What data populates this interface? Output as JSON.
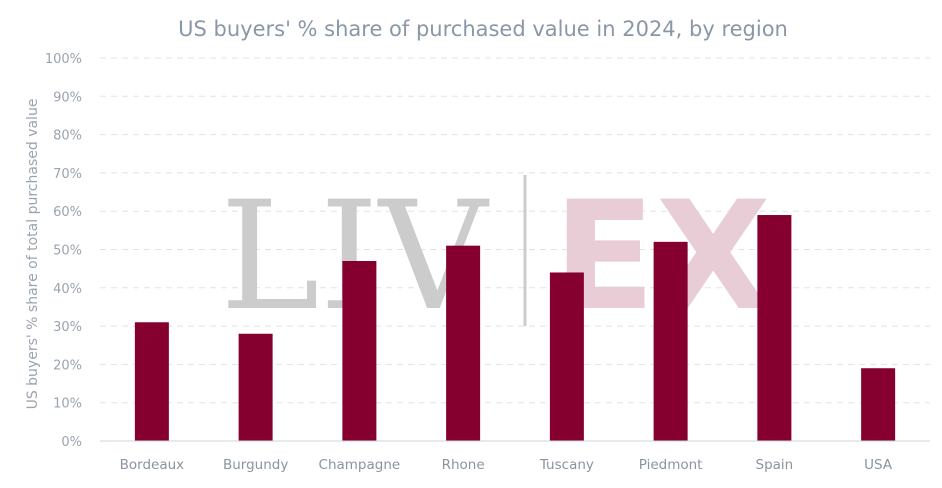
{
  "chart_data": {
    "type": "bar",
    "title": "US buyers' % share of purchased value in 2024, by region",
    "ylabel": "US buyers' % share of total purchased  value",
    "xlabel": "",
    "categories": [
      "Bordeaux",
      "Burgundy",
      "Champagne",
      "Rhone",
      "Tuscany",
      "Piedmont",
      "Spain",
      "USA"
    ],
    "values": [
      31,
      28,
      47,
      51,
      44,
      52,
      59,
      19
    ],
    "ylim": [
      0,
      100
    ],
    "yticks": [
      "0%",
      "10%",
      "20%",
      "30%",
      "40%",
      "50%",
      "60%",
      "70%",
      "80%",
      "90%",
      "100%"
    ],
    "grid": true,
    "legend": "none",
    "bar_color": "#85002f"
  },
  "watermark": {
    "left": "LIV",
    "right": "EX"
  }
}
